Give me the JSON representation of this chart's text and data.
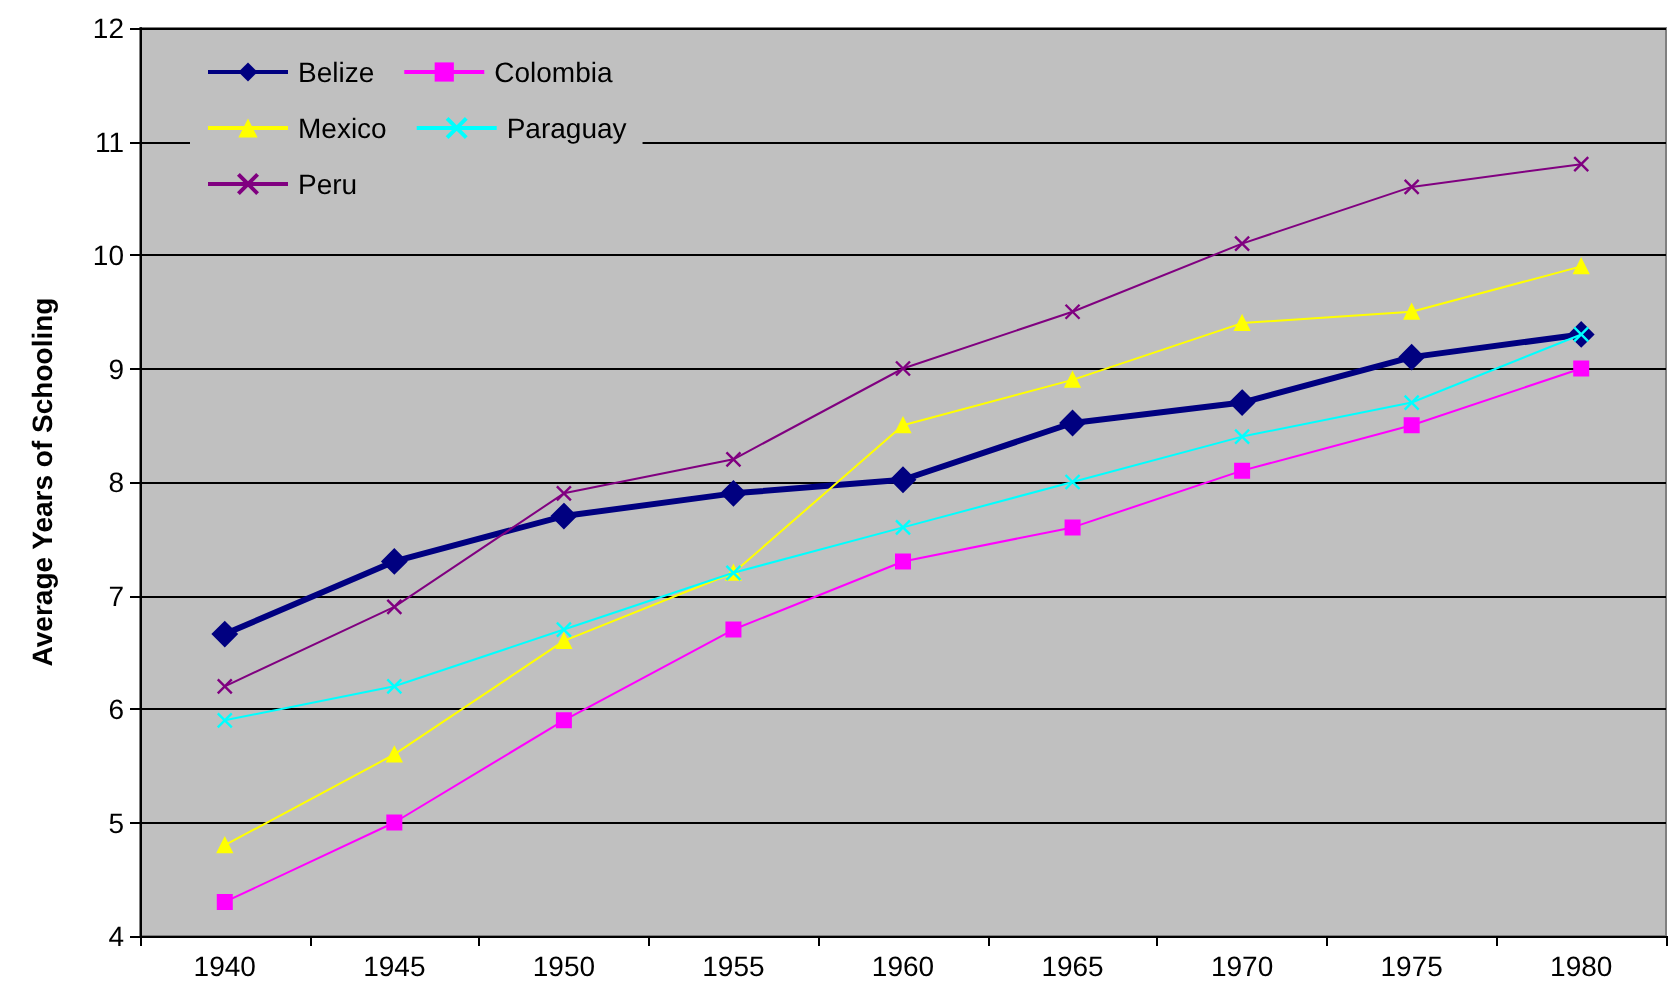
{
  "chart_data": {
    "type": "line",
    "ylabel": "Average Years of Schooling",
    "categories": [
      "1940",
      "1945",
      "1950",
      "1955",
      "1960",
      "1965",
      "1970",
      "1975",
      "1980"
    ],
    "ylim": [
      4,
      12
    ],
    "yticks": [
      4,
      5,
      6,
      7,
      8,
      9,
      10,
      11,
      12
    ],
    "grid": "y",
    "legend": "top left",
    "series": [
      {
        "name": "Belize",
        "color": "#000080",
        "marker": "diamond",
        "values": [
          6.66,
          7.3,
          7.7,
          7.9,
          8.02,
          8.52,
          8.7,
          9.1,
          9.3
        ]
      },
      {
        "name": "Colombia",
        "color": "#ff00ff",
        "marker": "square",
        "values": [
          4.3,
          5.0,
          5.9,
          6.7,
          7.3,
          7.6,
          8.1,
          8.5,
          9.0
        ]
      },
      {
        "name": "Mexico",
        "color": "#ffff00",
        "marker": "triangle",
        "values": [
          4.8,
          5.6,
          6.6,
          7.2,
          8.5,
          8.9,
          9.4,
          9.5,
          9.9
        ]
      },
      {
        "name": "Paraguay",
        "color": "#00ffff",
        "marker": "cross",
        "values": [
          5.9,
          6.2,
          6.7,
          7.2,
          7.6,
          8.0,
          8.4,
          8.7,
          9.3
        ]
      },
      {
        "name": "Peru",
        "color": "#800080",
        "marker": "cross",
        "values": [
          6.2,
          6.9,
          7.9,
          8.2,
          9.0,
          9.5,
          10.1,
          10.6,
          10.8
        ]
      }
    ]
  }
}
